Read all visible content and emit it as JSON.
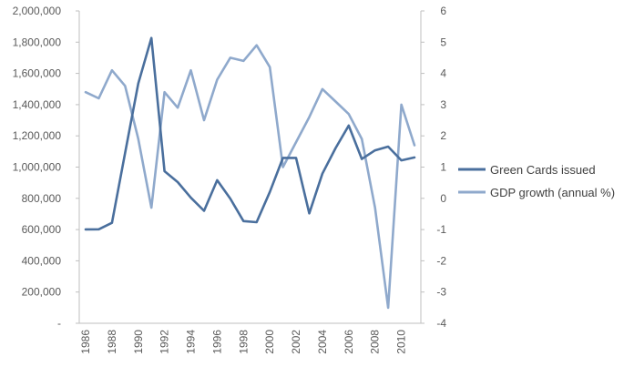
{
  "chart_data": {
    "type": "line",
    "title": "",
    "xlabel": "",
    "ylabel": "",
    "y2label": "",
    "grid": false,
    "legend_position": "right",
    "x": [
      1986,
      1987,
      1988,
      1989,
      1990,
      1991,
      1992,
      1993,
      1994,
      1995,
      1996,
      1997,
      1998,
      1999,
      2000,
      2001,
      2002,
      2003,
      2004,
      2005,
      2006,
      2007,
      2008,
      2009,
      2010,
      2011
    ],
    "x_tick_labels": [
      "1986",
      "1988",
      "1990",
      "1992",
      "1994",
      "1996",
      "1998",
      "2000",
      "2002",
      "2004",
      "2006",
      "2008",
      "2010"
    ],
    "y_left": {
      "range": [
        0,
        2000000
      ],
      "tick_values": [
        0,
        200000,
        400000,
        600000,
        800000,
        1000000,
        1200000,
        1400000,
        1600000,
        1800000,
        2000000
      ],
      "tick_labels": [
        "-",
        "200,000",
        "400,000",
        "600,000",
        "800,000",
        "1,000,000",
        "1,200,000",
        "1,400,000",
        "1,600,000",
        "1,800,000",
        "2,000,000"
      ]
    },
    "y_right": {
      "range": [
        -4,
        6
      ],
      "tick_values": [
        -4,
        -3,
        -2,
        -1,
        0,
        1,
        2,
        3,
        4,
        5,
        6
      ],
      "tick_labels": [
        "-4",
        "-3",
        "-2",
        "-1",
        "0",
        "1",
        "2",
        "3",
        "4",
        "5",
        "6"
      ]
    },
    "series": [
      {
        "name": "Green Cards issued",
        "axis": "left",
        "color": "#4a6f9d",
        "values": [
          601000,
          602000,
          643000,
          1090000,
          1536000,
          1827000,
          974000,
          904000,
          804000,
          720000,
          916000,
          798000,
          654000,
          647000,
          841000,
          1059000,
          1059000,
          704000,
          958000,
          1122000,
          1266000,
          1052000,
          1107000,
          1131000,
          1043000,
          1062000
        ]
      },
      {
        "name": "GDP growth (annual %)",
        "axis": "right",
        "color": "#8fa9cc",
        "values": [
          3.4,
          3.2,
          4.1,
          3.6,
          1.9,
          -0.3,
          3.4,
          2.9,
          4.1,
          2.5,
          3.8,
          4.5,
          4.4,
          4.9,
          4.2,
          1.0,
          1.8,
          2.6,
          3.5,
          3.1,
          2.7,
          1.9,
          -0.3,
          -3.5,
          3.0,
          1.7
        ]
      }
    ]
  }
}
